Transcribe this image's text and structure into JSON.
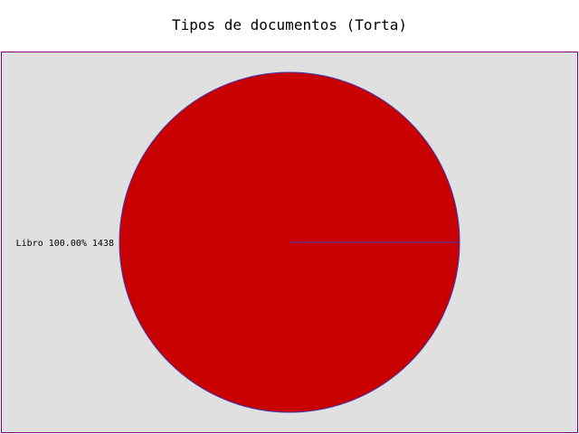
{
  "chart_data": {
    "type": "pie",
    "title": "Tipos de documentos (Torta)",
    "slices": [
      {
        "label": "Libro",
        "percent": "100.00%",
        "value": 1438,
        "color": "#c80000"
      }
    ],
    "colors": {
      "plot_background": "#e0e0e0",
      "plot_border": "#800080",
      "slice_outline": "#3c3cb4",
      "page_background": "#ffffff"
    }
  }
}
